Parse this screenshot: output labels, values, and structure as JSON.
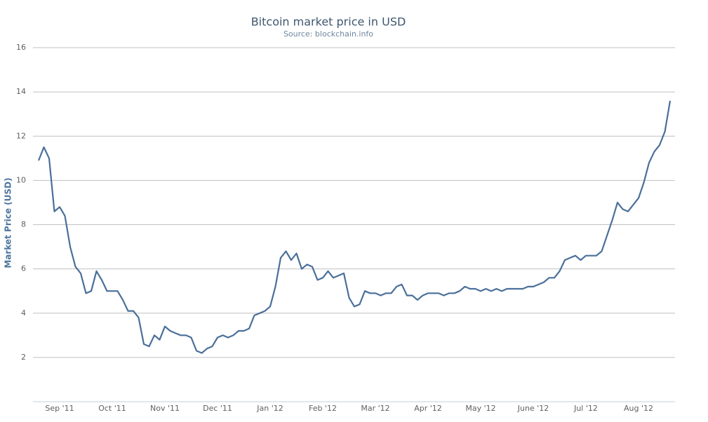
{
  "chart_data": {
    "type": "line",
    "title": "Bitcoin market price in USD",
    "subtitle": "Source: blockchain.info",
    "y_label": "Market Price (USD)",
    "categories": [
      null,
      null,
      null,
      null,
      "Sep '11",
      null,
      null,
      null,
      null,
      null,
      null,
      null,
      null,
      null,
      "Oct '11",
      null,
      null,
      null,
      null,
      null,
      null,
      null,
      null,
      null,
      "Nov '11",
      null,
      null,
      null,
      null,
      null,
      null,
      null,
      null,
      null,
      "Dec '11",
      null,
      null,
      null,
      null,
      null,
      null,
      null,
      null,
      null,
      "Jan '12",
      null,
      null,
      null,
      null,
      null,
      null,
      null,
      null,
      null,
      "Feb '12",
      null,
      null,
      null,
      null,
      null,
      null,
      null,
      null,
      null,
      "Mar '12",
      null,
      null,
      null,
      null,
      null,
      null,
      null,
      null,
      null,
      "Apr '12",
      null,
      null,
      null,
      null,
      null,
      null,
      null,
      null,
      null,
      "May '12",
      null,
      null,
      null,
      null,
      null,
      null,
      null,
      null,
      null,
      "June '12",
      null,
      null,
      null,
      null,
      null,
      null,
      null,
      null,
      null,
      "Jul '12",
      null,
      null,
      null,
      null,
      null,
      null,
      null,
      null,
      null,
      "Aug '12",
      null,
      null,
      null,
      null,
      null,
      null
    ],
    "series": [
      {
        "name": "Market Price (USD)",
        "color": "#4a6f9a",
        "values": [
          10.9,
          11.5,
          11.0,
          8.6,
          8.8,
          8.4,
          7.0,
          6.1,
          5.8,
          4.9,
          5.0,
          5.9,
          5.5,
          5.0,
          5.0,
          5.0,
          4.6,
          4.1,
          4.1,
          3.8,
          2.6,
          2.5,
          3.0,
          2.8,
          3.4,
          3.2,
          3.1,
          3.0,
          3.0,
          2.9,
          2.3,
          2.2,
          2.4,
          2.5,
          2.9,
          3.0,
          2.9,
          3.0,
          3.2,
          3.2,
          3.3,
          3.9,
          4.0,
          4.1,
          4.3,
          5.2,
          6.5,
          6.8,
          6.4,
          6.7,
          6.0,
          6.2,
          6.1,
          5.5,
          5.6,
          5.9,
          5.6,
          5.7,
          5.8,
          4.7,
          4.3,
          4.4,
          5.0,
          4.9,
          4.9,
          4.8,
          4.9,
          4.9,
          5.2,
          5.3,
          4.8,
          4.8,
          4.6,
          4.8,
          4.9,
          4.9,
          4.9,
          4.8,
          4.9,
          4.9,
          5.0,
          5.2,
          5.1,
          5.1,
          5.0,
          5.1,
          5.0,
          5.1,
          5.0,
          5.1,
          5.1,
          5.1,
          5.1,
          5.2,
          5.2,
          5.3,
          5.4,
          5.6,
          5.6,
          5.9,
          6.4,
          6.5,
          6.6,
          6.4,
          6.6,
          6.6,
          6.6,
          6.8,
          7.5,
          8.2,
          9.0,
          8.7,
          8.6,
          8.9,
          9.2,
          9.9,
          10.8,
          11.3,
          11.6,
          12.2,
          13.6
        ]
      }
    ],
    "ylim": [
      0,
      16
    ],
    "yticks": [
      2,
      4,
      6,
      8,
      10,
      12,
      14,
      16
    ],
    "grid": true
  }
}
